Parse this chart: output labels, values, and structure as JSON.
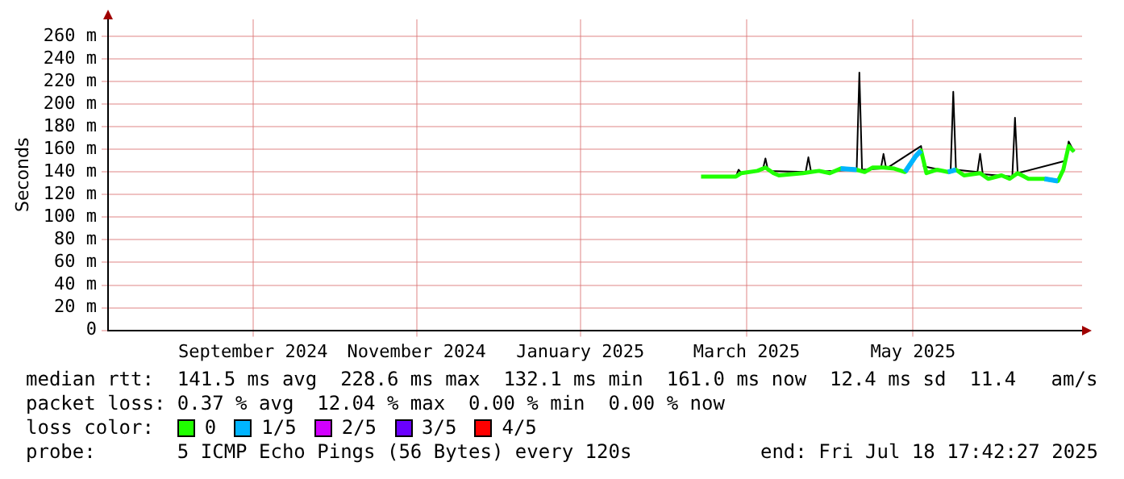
{
  "chart_data": {
    "type": "line",
    "ylabel": "Seconds",
    "legend_title": "loss color:",
    "legend": "bottom",
    "grid": true,
    "marker": "none",
    "line_style": "solid",
    "xlim": [
      "2024-07-20",
      "2025-07-18"
    ],
    "xticks": [
      {
        "value": "2024-09-12",
        "label": "September 2024"
      },
      {
        "value": "2024-11-12",
        "label": "November 2024"
      },
      {
        "value": "2025-01-12",
        "label": "January 2025"
      },
      {
        "value": "2025-03-15",
        "label": "March 2025"
      },
      {
        "value": "2025-05-16",
        "label": "May 2025"
      }
    ],
    "ylim": [
      0,
      275
    ],
    "yticks": [
      {
        "value": 0,
        "label": "0"
      },
      {
        "value": 20,
        "label": "20 m"
      },
      {
        "value": 40,
        "label": "40 m"
      },
      {
        "value": 60,
        "label": "60 m"
      },
      {
        "value": 80,
        "label": "80 m"
      },
      {
        "value": 100,
        "label": "100 m"
      },
      {
        "value": 120,
        "label": "120 m"
      },
      {
        "value": 140,
        "label": "140 m"
      },
      {
        "value": 160,
        "label": "160 m"
      },
      {
        "value": 180,
        "label": "180 m"
      },
      {
        "value": 200,
        "label": "200 m"
      },
      {
        "value": 220,
        "label": "220 m"
      },
      {
        "value": 240,
        "label": "240 m"
      },
      {
        "value": 260,
        "label": "260 m"
      }
    ],
    "x": [
      "2025-02-26",
      "2025-03-11",
      "2025-03-13",
      "2025-03-19",
      "2025-03-22",
      "2025-03-25",
      "2025-03-27",
      "2025-04-05",
      "2025-04-08",
      "2025-04-11",
      "2025-04-15",
      "2025-04-19",
      "2025-04-25",
      "2025-04-28",
      "2025-05-01",
      "2025-05-05",
      "2025-05-09",
      "2025-05-13",
      "2025-05-17",
      "2025-05-19",
      "2025-05-21",
      "2025-05-25",
      "2025-05-29",
      "2025-06-01",
      "2025-06-04",
      "2025-06-10",
      "2025-06-13",
      "2025-06-18",
      "2025-06-21",
      "2025-06-24",
      "2025-06-28",
      "2025-07-04",
      "2025-07-09",
      "2025-07-11",
      "2025-07-13",
      "2025-07-15"
    ],
    "series": [
      {
        "color": "#000000",
        "x": [
          "2025-03-11",
          "2025-03-12",
          "2025-03-13",
          "2025-03-21",
          "2025-03-22",
          "2025-03-23",
          "2025-04-06",
          "2025-04-07",
          "2025-04-08",
          "2025-04-25",
          "2025-04-26",
          "2025-04-27",
          "2025-05-04",
          "2025-05-05",
          "2025-05-06",
          "2025-05-19",
          "2025-05-20",
          "2025-05-30",
          "2025-05-31",
          "2025-06-01",
          "2025-06-09",
          "2025-06-10",
          "2025-06-11",
          "2025-06-22",
          "2025-06-23",
          "2025-06-24",
          "2025-07-12",
          "2025-07-13",
          "2025-07-15"
        ],
        "values": [
          136,
          142,
          139,
          142,
          152,
          141,
          140,
          153,
          140,
          142,
          228,
          142,
          143,
          156,
          143,
          163,
          145,
          140,
          211,
          142,
          140,
          156,
          138,
          136,
          188,
          139,
          150,
          167,
          158
        ]
      },
      {
        "name": "0",
        "color": "#20ff00",
        "values": [
          136,
          136,
          139,
          141,
          144,
          139,
          137,
          139,
          140,
          141,
          139,
          143,
          142,
          140,
          144,
          144,
          143,
          140,
          154,
          159,
          139,
          142,
          140,
          142,
          137,
          139,
          134,
          137,
          134,
          139,
          134,
          134,
          132,
          142,
          163,
          158
        ]
      },
      {
        "name": "1/5",
        "color": "#00b4ff",
        "values": [
          null,
          null,
          null,
          null,
          null,
          null,
          null,
          null,
          null,
          null,
          null,
          143,
          142,
          null,
          null,
          null,
          null,
          140,
          154,
          159,
          null,
          null,
          140,
          142,
          null,
          null,
          null,
          null,
          null,
          null,
          null,
          134,
          132,
          null,
          null,
          null
        ]
      },
      {
        "name": "2/5",
        "color": "#d200ff",
        "values": [
          null,
          null,
          null,
          null,
          null,
          null,
          null,
          null,
          null,
          null,
          null,
          null,
          null,
          null,
          null,
          null,
          null,
          null,
          null,
          null,
          null,
          null,
          null,
          null,
          null,
          null,
          null,
          null,
          null,
          null,
          null,
          null,
          null,
          null,
          null,
          null
        ]
      },
      {
        "name": "3/5",
        "color": "#6a00ff",
        "values": [
          null,
          null,
          null,
          null,
          null,
          null,
          null,
          null,
          null,
          null,
          null,
          null,
          null,
          null,
          null,
          null,
          null,
          null,
          null,
          null,
          null,
          null,
          null,
          null,
          null,
          null,
          null,
          null,
          null,
          null,
          null,
          null,
          null,
          null,
          null,
          null
        ]
      },
      {
        "name": "4/5",
        "color": "#ff0000",
        "values": [
          null,
          null,
          null,
          null,
          null,
          null,
          null,
          null,
          null,
          null,
          null,
          null,
          null,
          null,
          null,
          null,
          null,
          null,
          null,
          null,
          null,
          null,
          null,
          null,
          null,
          null,
          null,
          null,
          null,
          null,
          null,
          null,
          null,
          null,
          null,
          null
        ]
      }
    ],
    "annotations": [
      "median rtt:  141.5 ms avg  228.6 ms max  132.1 ms min  161.0 ms now  12.4 ms sd  11.4   am/s",
      "packet loss: 0.37 % avg  12.04 % max  0.00 % min  0.00 % now",
      "probe:       5 ICMP Echo Pings (56 Bytes) every 120s",
      "end: Fri Jul 18 17:42:27 2025"
    ]
  }
}
